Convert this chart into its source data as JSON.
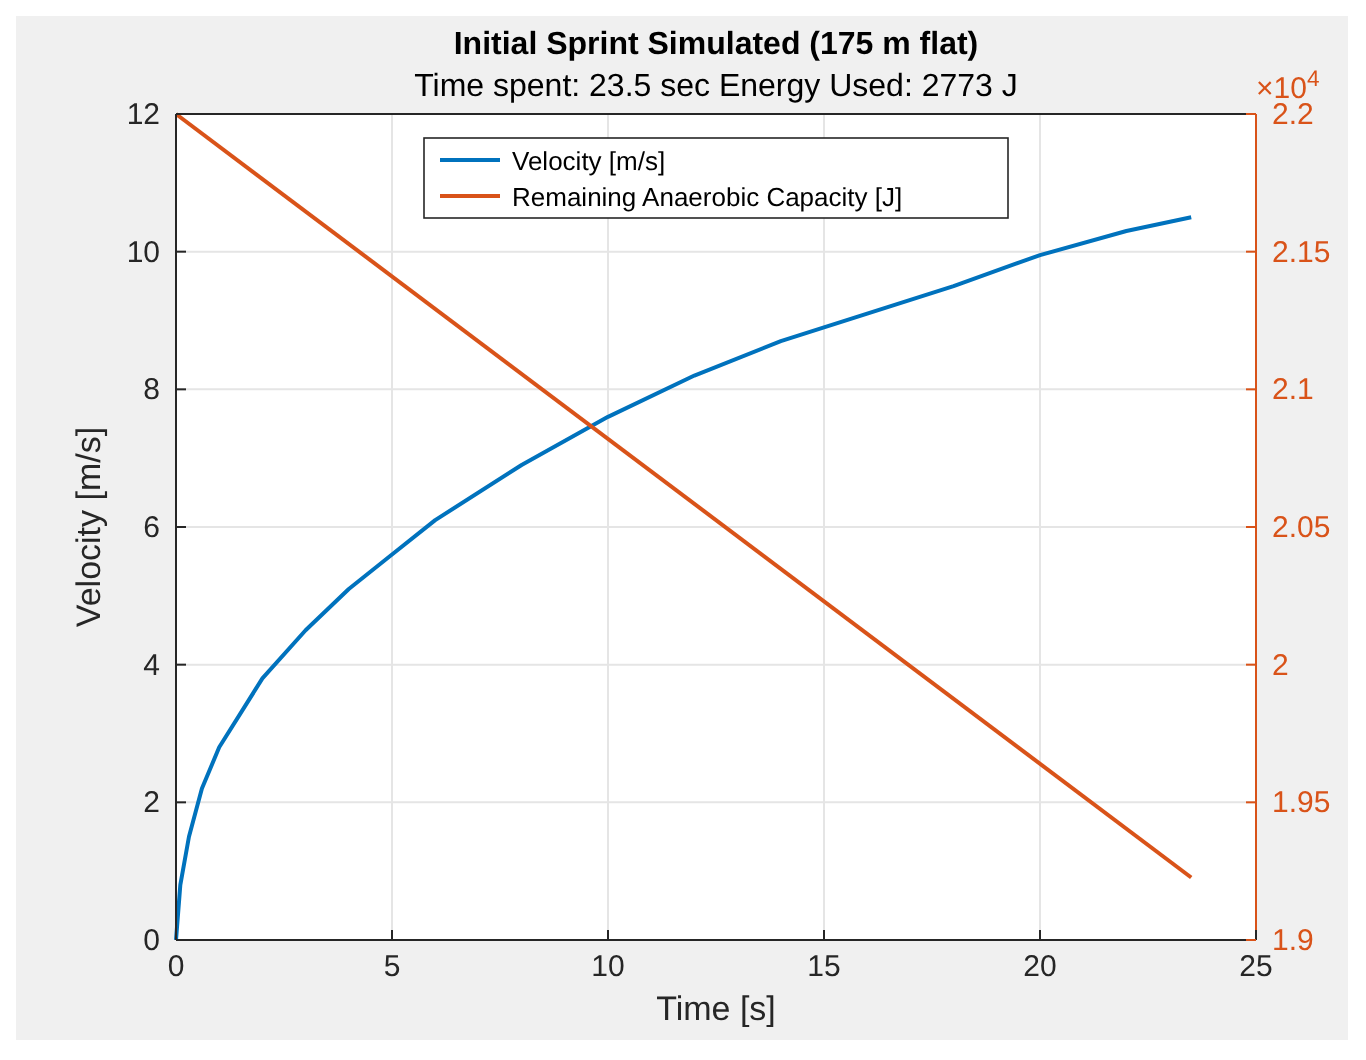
{
  "chart_data": {
    "type": "line",
    "title": "Initial Sprint Simulated (175 m flat)",
    "subtitle": "Time spent: 23.5 sec  Energy Used: 2773 J",
    "xlabel": "Time [s]",
    "ylabel": "Velocity [m/s]",
    "xlim": [
      0,
      25
    ],
    "xticks": [
      0,
      5,
      10,
      15,
      20,
      25
    ],
    "ylim": [
      0,
      12
    ],
    "yticks": [
      0,
      2,
      4,
      6,
      8,
      10,
      12
    ],
    "y2lim": [
      1.9,
      2.2
    ],
    "y2ticks": [
      1.9,
      1.95,
      2,
      2.05,
      2.1,
      2.15,
      2.2
    ],
    "annotations": [
      "×10$^{4}$"
    ],
    "grid": true,
    "legend": "top",
    "series": [
      {
        "name": "Velocity [m/s]",
        "color": "#0072bd",
        "x": [
          0,
          0.1,
          0.3,
          0.6,
          1,
          1.5,
          2,
          3,
          4,
          5,
          6,
          8,
          10,
          12,
          14,
          16,
          18,
          20,
          22,
          23.5
        ],
        "values": [
          0,
          0.8,
          1.5,
          2.2,
          2.8,
          3.3,
          3.8,
          4.5,
          5.1,
          5.6,
          6.1,
          6.9,
          7.6,
          8.2,
          8.7,
          9.1,
          9.5,
          9.95,
          10.3,
          10.5
        ]
      },
      {
        "name": "Remaining Anaerobic Capacity [J]",
        "color": "#d95319",
        "axis": "y2",
        "x": [
          0,
          23.5
        ],
        "values": [
          2.2,
          1.9227
        ]
      }
    ]
  }
}
